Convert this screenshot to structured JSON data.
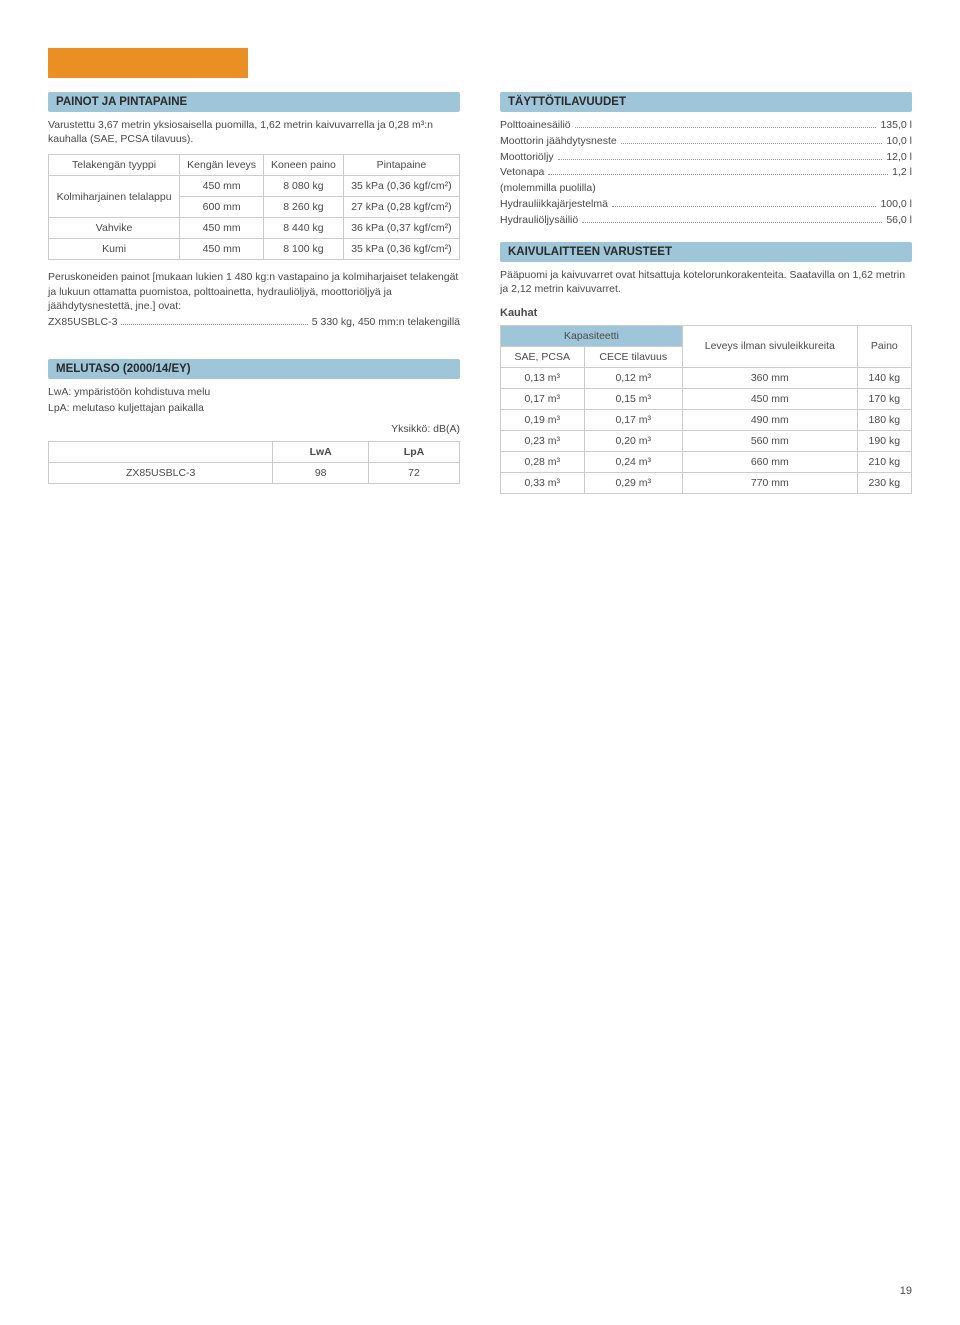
{
  "left": {
    "section1_title": "PAINOT JA PINTAPAINE",
    "intro": "Varustettu 3,67 metrin yksiosaisella puomilla, 1,62 metrin kaivuvarrella ja 0,28 m³:n kauhalla (SAE, PCSA tilavuus).",
    "table1": {
      "headers": {
        "col1": "Telakengän tyyppi",
        "col2": "Kengän leveys",
        "col3": "Koneen paino",
        "col4": "Pintapaine"
      },
      "rows": [
        {
          "type": "Kolmiharjainen telalappu",
          "rowspan": 2,
          "width": "450 mm",
          "weight": "8 080 kg",
          "pressure": "35 kPa (0,36 kgf/cm²)"
        },
        {
          "type": null,
          "width": "600 mm",
          "weight": "8 260 kg",
          "pressure": "27 kPa (0,28 kgf/cm²)"
        },
        {
          "type": "Vahvike",
          "rowspan": 1,
          "width": "450 mm",
          "weight": "8 440 kg",
          "pressure": "36 kPa (0,37 kgf/cm²)"
        },
        {
          "type": "Kumi",
          "rowspan": 1,
          "width": "450 mm",
          "weight": "8 100 kg",
          "pressure": "35 kPa (0,36 kgf/cm²)"
        }
      ]
    },
    "body_para": "Peruskoneiden painot [mukaan lukien 1 480 kg:n vastapaino ja kolmiharjaiset telakengät ja lukuun ottamatta puomistoa, polttoainetta, hydrauliöljyä, moottoriöljyä ja jäähdytysnestettä, jne.] ovat:",
    "body_line": "ZX85USBLC-3 ................................... 5 330 kg, 450 mm:n telakengillä",
    "body_label": "ZX85USBLC-3",
    "body_value": "5 330 kg, 450 mm:n telakengillä",
    "section2_title": "MELUTASO (2000/14/EY)",
    "noise_line1": "LwA: ympäristöön kohdistuva melu",
    "noise_line2": "LpA: melutaso kuljettajan paikalla",
    "noise_unit": "Yksikkö: dB(A)",
    "noise_table": {
      "headers": [
        "",
        "LwA",
        "LpA"
      ],
      "row": [
        "ZX85USBLC-3",
        "98",
        "72"
      ]
    }
  },
  "right": {
    "section1_title": "TÄYTTÖTILAVUUDET",
    "fill": [
      {
        "label": "Polttoainesäiliö",
        "value": "135,0 l"
      },
      {
        "label": "Moottorin jäähdytysneste",
        "value": "10,0 l"
      },
      {
        "label": "Moottoriöljy",
        "value": "12,0 l"
      },
      {
        "label": "Vetonapa",
        "value": "1,2 l"
      }
    ],
    "fill_subnote": "(molemmilla puolilla)",
    "fill2": [
      {
        "label": "Hydrauliikkajärjestelmä",
        "value": "100,0 l"
      },
      {
        "label": "Hydrauliöljysäiliö",
        "value": "56,0 l"
      }
    ],
    "section2_title": "KAIVULAITTEEN VARUSTEET",
    "equip_para": "Pääpuomi ja kaivuvarret ovat hitsattuja kotelorunkorakenteita. Saatavilla on 1,62 metrin ja 2,12 metrin kaivuvarret.",
    "kauhat_label": "Kauhat",
    "buckets": {
      "group_header": "Kapasiteetti",
      "col_headers": [
        "SAE, PCSA",
        "CECE tilavuus",
        "Leveys ilman sivuleikkureita",
        "Paino"
      ],
      "rows": [
        [
          "0,13 m³",
          "0,12 m³",
          "360 mm",
          "140 kg"
        ],
        [
          "0,17 m³",
          "0,15 m³",
          "450 mm",
          "170 kg"
        ],
        [
          "0,19 m³",
          "0,17 m³",
          "490 mm",
          "180 kg"
        ],
        [
          "0,23 m³",
          "0,20 m³",
          "560 mm",
          "190 kg"
        ],
        [
          "0,28 m³",
          "0,24 m³",
          "660 mm",
          "210 kg"
        ],
        [
          "0,33 m³",
          "0,29 m³",
          "770 mm",
          "230 kg"
        ]
      ]
    }
  },
  "page_number": "19",
  "colors": {
    "header_bg": "#9fc5d8",
    "orange": "#e98f24",
    "border": "#cccccc",
    "text": "#4a4a4a"
  }
}
